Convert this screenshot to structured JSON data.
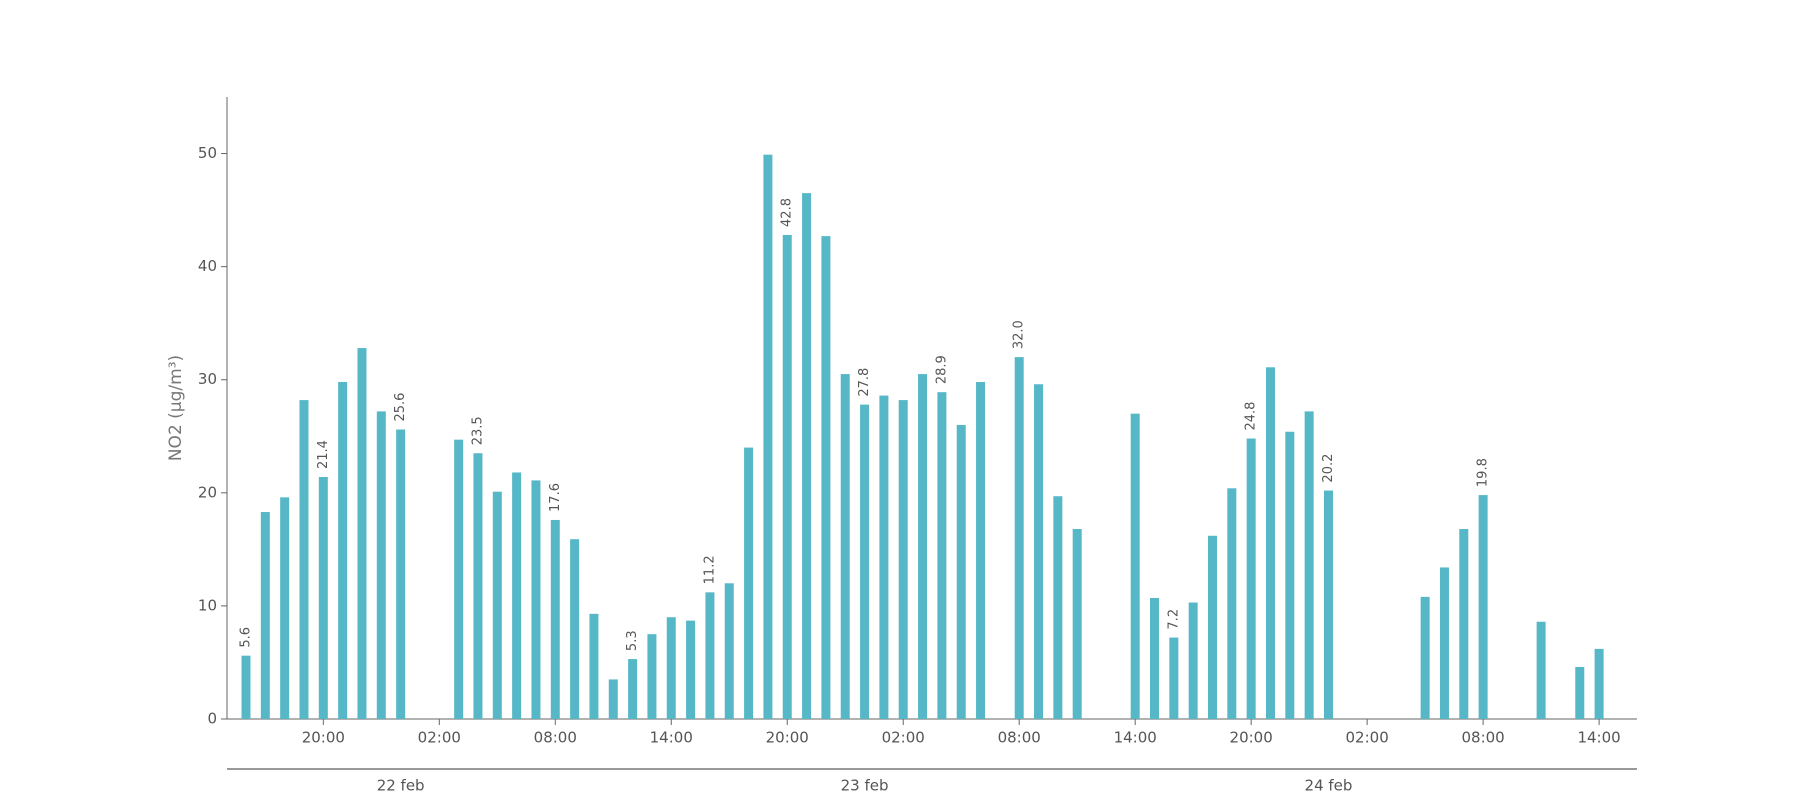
{
  "chart_data": {
    "type": "bar",
    "ylabel": "NO2 (μg/m³)",
    "color": "#56b8c6",
    "categories": [
      null,
      null,
      null,
      null,
      "20:00",
      null,
      null,
      null,
      null,
      null,
      "02:00",
      null,
      null,
      null,
      null,
      null,
      "08:00",
      null,
      null,
      null,
      null,
      null,
      "14:00",
      null,
      null,
      null,
      null,
      null,
      "20:00",
      null,
      null,
      null,
      null,
      null,
      "02:00",
      null,
      null,
      null,
      null,
      null,
      "08:00",
      null,
      null,
      null,
      null,
      null,
      "14:00",
      null,
      null,
      null,
      null,
      null,
      "20:00",
      null,
      null,
      null,
      null,
      null,
      "02:00",
      null,
      null,
      null,
      null,
      null,
      "08:00",
      null,
      null,
      null,
      null,
      null,
      "14:00"
    ],
    "values": [
      5.6,
      18.3,
      19.6,
      28.2,
      21.4,
      29.8,
      32.8,
      27.2,
      25.6,
      null,
      null,
      24.7,
      23.5,
      20.1,
      21.8,
      21.1,
      17.6,
      15.9,
      9.3,
      3.5,
      5.3,
      7.5,
      9.0,
      8.7,
      11.2,
      12.0,
      24.0,
      49.9,
      42.8,
      46.5,
      42.7,
      30.5,
      27.8,
      28.6,
      28.2,
      30.5,
      28.9,
      26.0,
      29.8,
      null,
      32.0,
      29.6,
      19.7,
      16.8,
      null,
      null,
      27.0,
      10.7,
      7.2,
      10.3,
      16.2,
      20.4,
      24.8,
      31.1,
      25.4,
      27.2,
      20.2,
      null,
      null,
      null,
      null,
      10.8,
      13.4,
      16.8,
      19.8,
      null,
      null,
      8.6,
      null,
      4.6,
      6.2
    ],
    "value_labels": [
      "5.6",
      null,
      null,
      null,
      "21.4",
      null,
      null,
      null,
      "25.6",
      null,
      null,
      null,
      "23.5",
      null,
      null,
      null,
      "17.6",
      null,
      null,
      null,
      "5.3",
      null,
      null,
      null,
      "11.2",
      null,
      null,
      null,
      "42.8",
      null,
      null,
      null,
      "27.8",
      null,
      null,
      null,
      "28.9",
      null,
      null,
      null,
      "32.0",
      null,
      null,
      null,
      null,
      null,
      null,
      null,
      "7.2",
      null,
      null,
      null,
      "24.8",
      null,
      null,
      null,
      "20.2",
      null,
      null,
      null,
      null,
      null,
      null,
      null,
      "19.8",
      null,
      null,
      null,
      null,
      null,
      null
    ],
    "day_labels": [
      "22 feb",
      "23 feb",
      "24 feb"
    ],
    "ylim": [
      0,
      55
    ],
    "yticks": [
      0,
      10,
      20,
      30,
      40,
      50
    ]
  }
}
